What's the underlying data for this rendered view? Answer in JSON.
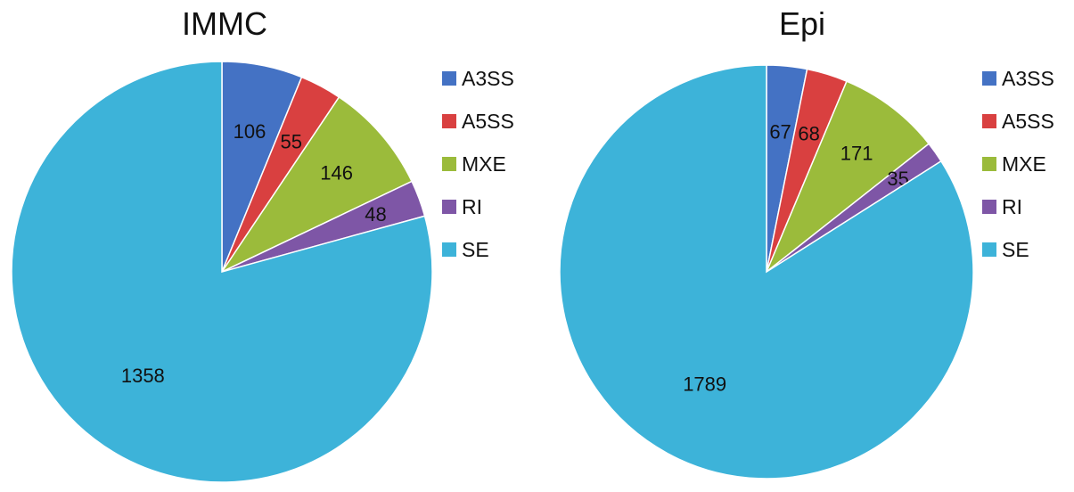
{
  "chart_data": [
    {
      "type": "pie",
      "title": "IMMC",
      "categories": [
        "A3SS",
        "A5SS",
        "MXE",
        "RI",
        "SE"
      ],
      "values": [
        106,
        55,
        146,
        48,
        1358
      ],
      "colors": [
        "#4472C4",
        "#D94040",
        "#9BBB3B",
        "#7E56A6",
        "#3DB3D9"
      ],
      "start_angle": "12 o'clock",
      "direction": "clockwise",
      "legend": "right"
    },
    {
      "type": "pie",
      "title": "Epi",
      "categories": [
        "A3SS",
        "A5SS",
        "MXE",
        "RI",
        "SE"
      ],
      "values": [
        67,
        68,
        171,
        35,
        1789
      ],
      "colors": [
        "#4472C4",
        "#D94040",
        "#9BBB3B",
        "#7E56A6",
        "#3DB3D9"
      ],
      "start_angle": "12 o'clock",
      "direction": "clockwise",
      "legend": "right"
    }
  ]
}
